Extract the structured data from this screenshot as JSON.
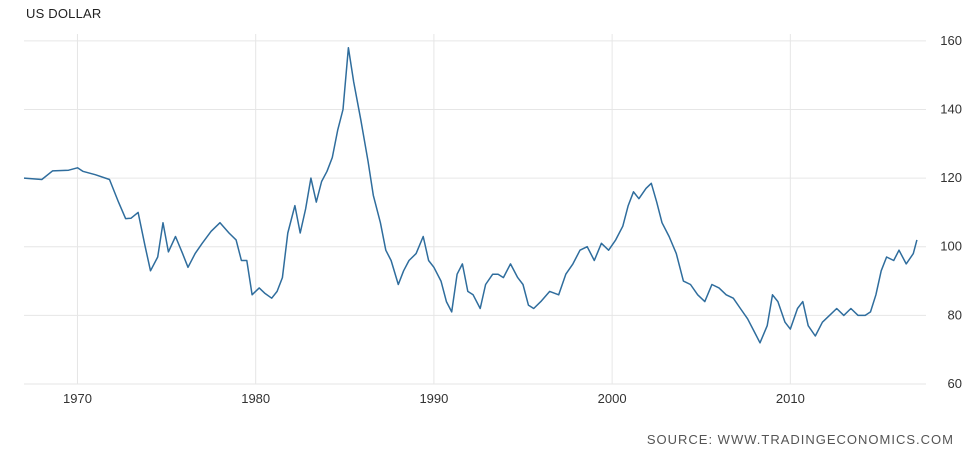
{
  "title": "US DOLLAR",
  "source": "SOURCE: WWW.TRADINGECONOMICS.COM",
  "colors": {
    "line": "#2f6d9d",
    "grid": "#e6e6e6",
    "text": "#333333"
  },
  "chart_data": {
    "type": "line",
    "title": "US DOLLAR",
    "xlabel": "",
    "ylabel": "",
    "xlim": [
      1967,
      2017.5
    ],
    "ylim": [
      60,
      162
    ],
    "x_ticks": [
      1970,
      1980,
      1990,
      2000,
      2010
    ],
    "y_ticks": [
      60,
      80,
      100,
      120,
      140,
      160
    ],
    "y_axis_side": "right",
    "grid": true,
    "legend": "none",
    "series": [
      {
        "name": "",
        "points": [
          [
            1967.0,
            120.0
          ],
          [
            1968.0,
            119.6
          ],
          [
            1968.6,
            122.1
          ],
          [
            1969.5,
            122.3
          ],
          [
            1970.0,
            123.0
          ],
          [
            1970.3,
            122.0
          ],
          [
            1971.0,
            121.0
          ],
          [
            1971.8,
            119.6
          ],
          [
            1972.3,
            113.0
          ],
          [
            1972.7,
            108.2
          ],
          [
            1973.0,
            108.3
          ],
          [
            1973.4,
            110.0
          ],
          [
            1973.8,
            100.0
          ],
          [
            1974.1,
            93.0
          ],
          [
            1974.5,
            97.0
          ],
          [
            1974.8,
            107.0
          ],
          [
            1975.1,
            98.5
          ],
          [
            1975.5,
            103.0
          ],
          [
            1975.9,
            98.0
          ],
          [
            1976.2,
            94.0
          ],
          [
            1976.6,
            98.0
          ],
          [
            1977.0,
            101.0
          ],
          [
            1977.5,
            104.5
          ],
          [
            1978.0,
            107.0
          ],
          [
            1978.5,
            104.0
          ],
          [
            1978.9,
            102.0
          ],
          [
            1979.2,
            96.0
          ],
          [
            1979.5,
            96.0
          ],
          [
            1979.8,
            86.0
          ],
          [
            1980.2,
            88.0
          ],
          [
            1980.5,
            86.5
          ],
          [
            1980.9,
            85.0
          ],
          [
            1981.2,
            87.0
          ],
          [
            1981.5,
            91.0
          ],
          [
            1981.8,
            104.0
          ],
          [
            1982.2,
            112.0
          ],
          [
            1982.5,
            104.0
          ],
          [
            1982.8,
            111.0
          ],
          [
            1983.1,
            120.0
          ],
          [
            1983.4,
            113.0
          ],
          [
            1983.7,
            119.0
          ],
          [
            1984.0,
            122.0
          ],
          [
            1984.3,
            126.0
          ],
          [
            1984.6,
            134.0
          ],
          [
            1984.9,
            140.0
          ],
          [
            1985.2,
            158.0
          ],
          [
            1985.5,
            148.0
          ],
          [
            1985.9,
            137.0
          ],
          [
            1986.3,
            125.0
          ],
          [
            1986.6,
            115.0
          ],
          [
            1987.0,
            107.0
          ],
          [
            1987.3,
            99.0
          ],
          [
            1987.6,
            96.0
          ],
          [
            1988.0,
            89.0
          ],
          [
            1988.3,
            93.0
          ],
          [
            1988.6,
            96.0
          ],
          [
            1989.0,
            98.0
          ],
          [
            1989.4,
            103.0
          ],
          [
            1989.7,
            96.0
          ],
          [
            1990.0,
            94.0
          ],
          [
            1990.4,
            90.0
          ],
          [
            1990.7,
            84.0
          ],
          [
            1991.0,
            81.0
          ],
          [
            1991.3,
            92.0
          ],
          [
            1991.6,
            95.0
          ],
          [
            1991.9,
            87.0
          ],
          [
            1992.2,
            86.0
          ],
          [
            1992.6,
            82.0
          ],
          [
            1992.9,
            89.0
          ],
          [
            1993.3,
            92.0
          ],
          [
            1993.6,
            92.0
          ],
          [
            1993.9,
            91.0
          ],
          [
            1994.3,
            95.0
          ],
          [
            1994.7,
            91.0
          ],
          [
            1995.0,
            89.0
          ],
          [
            1995.3,
            83.0
          ],
          [
            1995.6,
            82.0
          ],
          [
            1996.0,
            84.0
          ],
          [
            1996.5,
            87.0
          ],
          [
            1997.0,
            86.0
          ],
          [
            1997.4,
            92.0
          ],
          [
            1997.8,
            95.0
          ],
          [
            1998.2,
            99.0
          ],
          [
            1998.6,
            100.0
          ],
          [
            1999.0,
            96.0
          ],
          [
            1999.4,
            101.0
          ],
          [
            1999.8,
            99.0
          ],
          [
            2000.2,
            102.0
          ],
          [
            2000.6,
            106.0
          ],
          [
            2000.9,
            112.0
          ],
          [
            2001.2,
            116.0
          ],
          [
            2001.5,
            114.0
          ],
          [
            2001.9,
            117.0
          ],
          [
            2002.2,
            118.5
          ],
          [
            2002.5,
            113.0
          ],
          [
            2002.8,
            107.0
          ],
          [
            2003.2,
            103.0
          ],
          [
            2003.6,
            98.0
          ],
          [
            2004.0,
            90.0
          ],
          [
            2004.4,
            89.0
          ],
          [
            2004.8,
            86.0
          ],
          [
            2005.2,
            84.0
          ],
          [
            2005.6,
            89.0
          ],
          [
            2006.0,
            88.0
          ],
          [
            2006.4,
            86.0
          ],
          [
            2006.8,
            85.0
          ],
          [
            2007.2,
            82.0
          ],
          [
            2007.6,
            79.0
          ],
          [
            2008.0,
            75.0
          ],
          [
            2008.3,
            72.0
          ],
          [
            2008.7,
            77.0
          ],
          [
            2009.0,
            86.0
          ],
          [
            2009.3,
            84.0
          ],
          [
            2009.7,
            78.0
          ],
          [
            2010.0,
            76.0
          ],
          [
            2010.4,
            82.0
          ],
          [
            2010.7,
            84.0
          ],
          [
            2011.0,
            77.0
          ],
          [
            2011.4,
            74.0
          ],
          [
            2011.8,
            78.0
          ],
          [
            2012.2,
            80.0
          ],
          [
            2012.6,
            82.0
          ],
          [
            2013.0,
            80.0
          ],
          [
            2013.4,
            82.0
          ],
          [
            2013.8,
            80.0
          ],
          [
            2014.2,
            80.0
          ],
          [
            2014.5,
            81.0
          ],
          [
            2014.8,
            86.0
          ],
          [
            2015.1,
            93.0
          ],
          [
            2015.4,
            97.0
          ],
          [
            2015.8,
            96.0
          ],
          [
            2016.1,
            99.0
          ],
          [
            2016.5,
            95.0
          ],
          [
            2016.9,
            98.0
          ],
          [
            2017.1,
            102.0
          ]
        ]
      }
    ]
  }
}
